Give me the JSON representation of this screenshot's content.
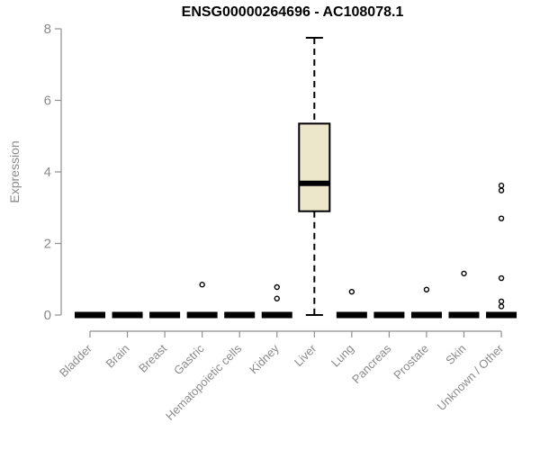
{
  "chart_data": {
    "type": "boxplot",
    "title": "ENSG00000264696 - AC108078.1",
    "xlabel": "",
    "ylabel": "Expression",
    "ylim": [
      0,
      8
    ],
    "yticks": [
      0,
      2,
      4,
      6,
      8
    ],
    "grid": false,
    "legend": false,
    "categories": [
      "Bladder",
      "Brain",
      "Breast",
      "Gastric",
      "Hematopoietic cells",
      "Kidney",
      "Liver",
      "Lung",
      "Pancreas",
      "Prostate",
      "Skin",
      "Unknown / Other"
    ],
    "series": [
      {
        "category": "Bladder",
        "min": 0,
        "q1": 0,
        "median": 0,
        "q3": 0,
        "max": 0,
        "outliers": []
      },
      {
        "category": "Brain",
        "min": 0,
        "q1": 0,
        "median": 0,
        "q3": 0,
        "max": 0,
        "outliers": []
      },
      {
        "category": "Breast",
        "min": 0,
        "q1": 0,
        "median": 0,
        "q3": 0,
        "max": 0,
        "outliers": []
      },
      {
        "category": "Gastric",
        "min": 0,
        "q1": 0,
        "median": 0,
        "q3": 0,
        "max": 0,
        "outliers": [
          0.85
        ]
      },
      {
        "category": "Hematopoietic cells",
        "min": 0,
        "q1": 0,
        "median": 0,
        "q3": 0,
        "max": 0,
        "outliers": []
      },
      {
        "category": "Kidney",
        "min": 0,
        "q1": 0,
        "median": 0,
        "q3": 0,
        "max": 0,
        "outliers": [
          0.78,
          0.46
        ]
      },
      {
        "category": "Liver",
        "min": 0,
        "q1": 2.9,
        "median": 3.68,
        "q3": 5.35,
        "max": 7.75,
        "outliers": []
      },
      {
        "category": "Lung",
        "min": 0,
        "q1": 0,
        "median": 0,
        "q3": 0,
        "max": 0,
        "outliers": [
          0.65
        ]
      },
      {
        "category": "Pancreas",
        "min": 0,
        "q1": 0,
        "median": 0,
        "q3": 0,
        "max": 0,
        "outliers": []
      },
      {
        "category": "Prostate",
        "min": 0,
        "q1": 0,
        "median": 0,
        "q3": 0,
        "max": 0,
        "outliers": [
          0.71
        ]
      },
      {
        "category": "Skin",
        "min": 0,
        "q1": 0,
        "median": 0,
        "q3": 0,
        "max": 0,
        "outliers": [
          1.16
        ]
      },
      {
        "category": "Unknown / Other",
        "min": 0,
        "q1": 0,
        "median": 0,
        "q3": 0,
        "max": 0,
        "outliers": [
          3.62,
          3.48,
          2.7,
          1.03,
          0.38,
          0.24
        ]
      }
    ],
    "colors": {
      "box_fill": "#ece7ca",
      "box_border": "#000000",
      "median": "#000000",
      "axis": "#909090",
      "tick_label": "#8a8a8a",
      "title": "#000000"
    }
  }
}
